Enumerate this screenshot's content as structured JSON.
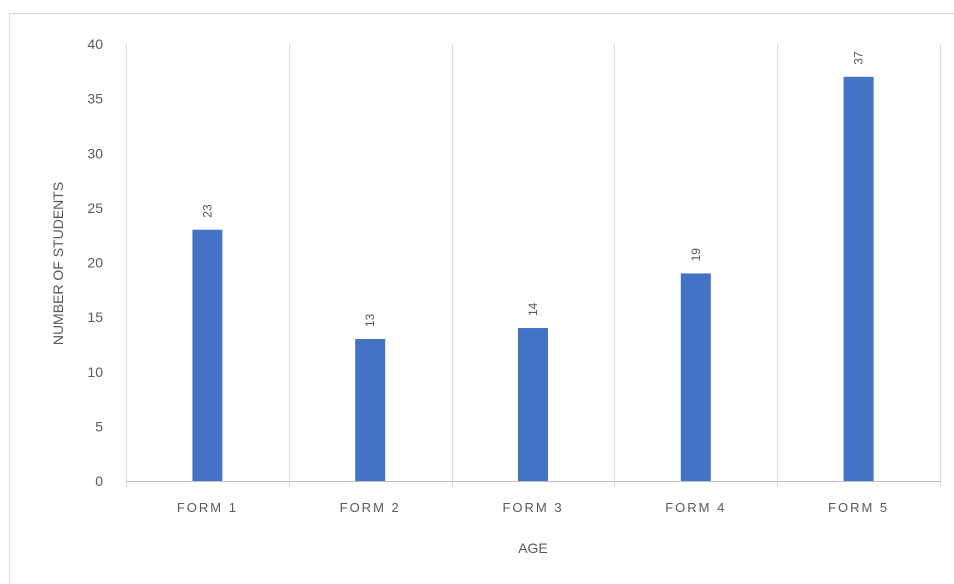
{
  "chart_data": {
    "type": "bar",
    "categories": [
      "FORM 1",
      "FORM 2",
      "FORM 3",
      "FORM 4",
      "FORM 5"
    ],
    "values": [
      23,
      13,
      14,
      19,
      37
    ],
    "data_labels": [
      "23",
      "13",
      "14",
      "19",
      "37"
    ],
    "xlabel": "AGE",
    "ylabel": "NUMBER OF STUDENTS",
    "ylim": [
      0,
      40
    ],
    "yticks": [
      0,
      5,
      10,
      15,
      20,
      25,
      30,
      35,
      40
    ],
    "grid": "vertical category separators",
    "legend": "none",
    "bar_color": "#4472c4"
  }
}
